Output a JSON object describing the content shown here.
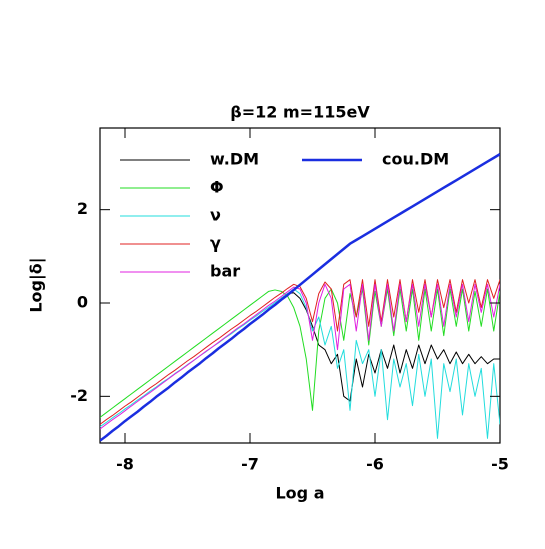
{
  "chart_data": {
    "type": "line",
    "title": "β=12   m=115eV",
    "x_label": "Log a",
    "y_label": "Log|δ|",
    "xlim": [
      -8.2,
      -5
    ],
    "ylim": [
      -3,
      3.75
    ],
    "xticks": [
      -8,
      -7,
      -6,
      -5
    ],
    "yticks": [
      -2,
      0,
      2
    ],
    "x": [
      -8.2,
      -8.15,
      -8.1,
      -8.05,
      -8,
      -7.95,
      -7.9,
      -7.85,
      -7.8,
      -7.75,
      -7.7,
      -7.65,
      -7.6,
      -7.55,
      -7.5,
      -7.45,
      -7.4,
      -7.35,
      -7.3,
      -7.25,
      -7.2,
      -7.15,
      -7.1,
      -7.05,
      -7,
      -6.95,
      -6.9,
      -6.85,
      -6.8,
      -6.75,
      -6.7,
      -6.65,
      -6.6,
      -6.55,
      -6.5,
      -6.45,
      -6.4,
      -6.35,
      -6.3,
      -6.25,
      -6.2,
      -6.15,
      -6.1,
      -6.05,
      -6,
      -5.95,
      -5.9,
      -5.85,
      -5.8,
      -5.75,
      -5.7,
      -5.65,
      -5.6,
      -5.55,
      -5.5,
      -5.45,
      -5.4,
      -5.35,
      -5.3,
      -5.25,
      -5.2,
      -5.15,
      -5.1,
      -5.05,
      -5
    ],
    "series": [
      {
        "name": "w.DM",
        "color": "#000000",
        "line_width": 1,
        "values": [
          -2.95,
          -2.85,
          -2.74,
          -2.64,
          -2.53,
          -2.43,
          -2.33,
          -2.22,
          -2.12,
          -2.01,
          -1.91,
          -1.81,
          -1.7,
          -1.6,
          -1.49,
          -1.39,
          -1.29,
          -1.18,
          -1.08,
          -0.97,
          -0.87,
          -0.77,
          -0.66,
          -0.56,
          -0.45,
          -0.35,
          -0.25,
          -0.14,
          -0.04,
          0.1,
          0.2,
          0.22,
          0.1,
          -0.15,
          -0.5,
          -0.9,
          -1.0,
          -1.3,
          -1.1,
          -2.0,
          -2.1,
          -1.2,
          -1.8,
          -1.1,
          -1.5,
          -1.0,
          -1.4,
          -0.9,
          -1.5,
          -1.0,
          -1.4,
          -0.9,
          -1.3,
          -0.9,
          -1.2,
          -1.0,
          -1.3,
          -1.05,
          -1.3,
          -1.1,
          -1.3,
          -1.15,
          -1.3,
          -1.2,
          -1.2
        ]
      },
      {
        "name": "Φ",
        "color": "#22dd22",
        "line_width": 1,
        "values": [
          -2.45,
          -2.35,
          -2.25,
          -2.15,
          -2.05,
          -1.95,
          -1.85,
          -1.75,
          -1.65,
          -1.55,
          -1.45,
          -1.35,
          -1.25,
          -1.15,
          -1.05,
          -0.95,
          -0.85,
          -0.75,
          -0.65,
          -0.55,
          -0.45,
          -0.35,
          -0.25,
          -0.15,
          -0.05,
          0.05,
          0.15,
          0.25,
          0.28,
          0.25,
          0.15,
          -0.1,
          -0.5,
          -1.2,
          -2.3,
          -0.6,
          0.1,
          0.3,
          0.0,
          -0.8,
          0.2,
          -0.3,
          0.3,
          -0.9,
          0.25,
          -0.5,
          0.3,
          -0.7,
          0.3,
          -0.6,
          0.3,
          -0.8,
          0.3,
          -0.6,
          0.3,
          -0.7,
          0.3,
          -0.5,
          0.3,
          -0.6,
          0.25,
          -0.5,
          0.3,
          -0.6,
          0.25
        ]
      },
      {
        "name": "ν",
        "color": "#22dddd",
        "line_width": 1,
        "values": [
          -2.65,
          -2.56,
          -2.46,
          -2.37,
          -2.27,
          -2.18,
          -2.08,
          -1.99,
          -1.89,
          -1.8,
          -1.7,
          -1.61,
          -1.51,
          -1.42,
          -1.32,
          -1.23,
          -1.13,
          -1.04,
          -0.94,
          -0.85,
          -0.75,
          -0.66,
          -0.56,
          -0.47,
          -0.37,
          -0.28,
          -0.18,
          -0.09,
          0.01,
          0.1,
          0.2,
          0.3,
          0.2,
          -0.1,
          -0.6,
          -0.3,
          -0.9,
          -0.5,
          -1.4,
          -1.0,
          -2.3,
          -0.8,
          -1.3,
          -1.0,
          -2.0,
          -1.0,
          -2.5,
          -1.2,
          -1.8,
          -1.3,
          -2.2,
          -1.1,
          -2.0,
          -1.2,
          -2.9,
          -1.3,
          -1.9,
          -1.2,
          -2.4,
          -1.3,
          -2.0,
          -1.4,
          -2.9,
          -1.3,
          -2.6
        ]
      },
      {
        "name": "γ",
        "color": "#e02020",
        "line_width": 1,
        "values": [
          -2.6,
          -2.5,
          -2.41,
          -2.31,
          -2.21,
          -2.12,
          -2.02,
          -1.92,
          -1.82,
          -1.73,
          -1.63,
          -1.53,
          -1.44,
          -1.34,
          -1.24,
          -1.15,
          -1.05,
          -0.95,
          -0.85,
          -0.76,
          -0.66,
          -0.56,
          -0.47,
          -0.37,
          -0.27,
          -0.18,
          -0.08,
          0.02,
          0.12,
          0.21,
          0.31,
          0.4,
          0.35,
          0.1,
          -0.4,
          0.2,
          0.45,
          0.3,
          -0.6,
          0.4,
          0.5,
          -0.3,
          0.5,
          -0.5,
          0.5,
          -0.4,
          0.5,
          -0.3,
          0.5,
          -0.4,
          0.5,
          -0.2,
          0.5,
          -0.3,
          0.5,
          -0.1,
          0.5,
          -0.2,
          0.5,
          0.0,
          0.5,
          -0.1,
          0.5,
          0.1,
          0.5
        ]
      },
      {
        "name": "bar",
        "color": "#e020e0",
        "line_width": 1,
        "values": [
          -2.7,
          -2.6,
          -2.5,
          -2.41,
          -2.31,
          -2.21,
          -2.11,
          -2.01,
          -1.92,
          -1.82,
          -1.72,
          -1.62,
          -1.52,
          -1.43,
          -1.33,
          -1.23,
          -1.13,
          -1.03,
          -0.94,
          -0.84,
          -0.74,
          -0.64,
          -0.54,
          -0.45,
          -0.35,
          -0.25,
          -0.15,
          -0.05,
          0.04,
          0.14,
          0.24,
          0.34,
          0.3,
          0.0,
          -0.8,
          0.0,
          0.4,
          0.1,
          -1.0,
          0.3,
          0.4,
          -0.6,
          0.4,
          -0.8,
          0.4,
          -0.5,
          0.4,
          -0.6,
          0.4,
          -0.4,
          0.4,
          -0.5,
          0.4,
          -0.3,
          0.4,
          -0.5,
          0.4,
          -0.3,
          0.4,
          -0.4,
          0.4,
          -0.2,
          0.4,
          -0.3,
          0.4
        ]
      },
      {
        "name": "cou.DM",
        "color": "#1a2ee0",
        "line_width": 2.5,
        "values": [
          -2.95,
          -2.85,
          -2.74,
          -2.64,
          -2.53,
          -2.43,
          -2.33,
          -2.22,
          -2.12,
          -2.01,
          -1.91,
          -1.81,
          -1.7,
          -1.6,
          -1.49,
          -1.39,
          -1.29,
          -1.18,
          -1.08,
          -0.97,
          -0.87,
          -0.77,
          -0.66,
          -0.56,
          -0.45,
          -0.35,
          -0.25,
          -0.14,
          -0.04,
          0.07,
          0.17,
          0.28,
          0.39,
          0.5,
          0.61,
          0.72,
          0.83,
          0.94,
          1.05,
          1.16,
          1.27,
          1.35,
          1.43,
          1.51,
          1.59,
          1.67,
          1.75,
          1.83,
          1.91,
          1.99,
          2.07,
          2.15,
          2.23,
          2.31,
          2.39,
          2.47,
          2.55,
          2.63,
          2.71,
          2.79,
          2.87,
          2.95,
          3.03,
          3.11,
          3.19
        ]
      }
    ]
  }
}
